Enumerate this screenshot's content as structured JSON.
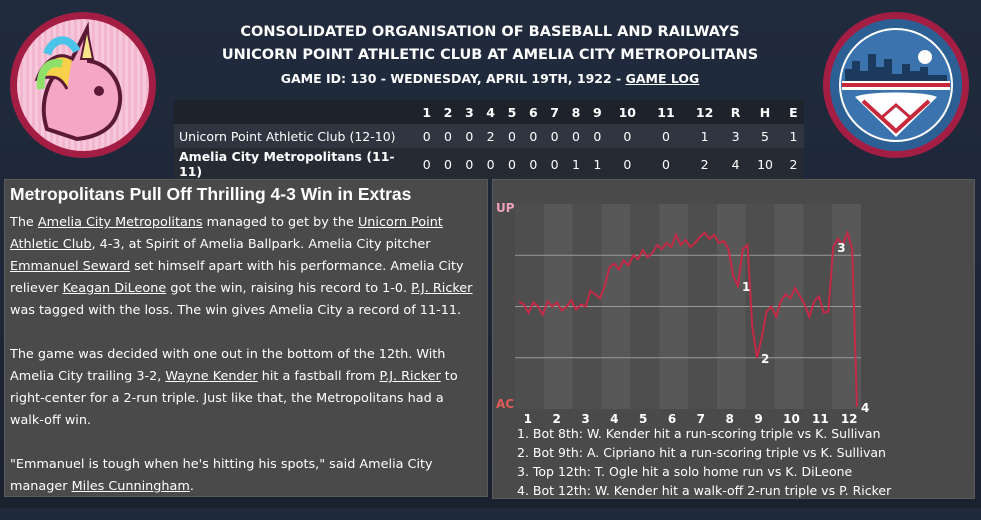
{
  "header": {
    "league": "CONSOLIDATED ORGANISATION OF BASEBALL AND RAILWAYS",
    "matchup": "UNICORN POINT ATHLETIC CLUB AT AMELIA CITY METROPOLITANS",
    "game_info": "GAME ID: 130 - WEDNESDAY, APRIL 19TH, 1922 - ",
    "game_log_link": "GAME LOG"
  },
  "linescore": {
    "innings": [
      "1",
      "2",
      "3",
      "4",
      "5",
      "6",
      "7",
      "8",
      "9",
      "10",
      "11",
      "12"
    ],
    "totals_headers": [
      "R",
      "H",
      "E"
    ],
    "rows": [
      {
        "team": "Unicorn Point Athletic Club (12-10)",
        "innings": [
          "0",
          "0",
          "0",
          "2",
          "0",
          "0",
          "0",
          "0",
          "0",
          "0",
          "0",
          "1"
        ],
        "totals": [
          "3",
          "5",
          "1"
        ]
      },
      {
        "team": "Amelia City Metropolitans (11-11)",
        "innings": [
          "0",
          "0",
          "0",
          "0",
          "0",
          "0",
          "0",
          "1",
          "1",
          "0",
          "0",
          "2"
        ],
        "totals": [
          "4",
          "10",
          "2"
        ]
      }
    ]
  },
  "article": {
    "title": "Metropolitans Pull Off Thrilling 4-3 Win in Extras",
    "p1": [
      {
        "t": "The "
      },
      {
        "t": "Amelia City Metropolitans",
        "link": true
      },
      {
        "t": " managed to get by the "
      },
      {
        "t": "Unicorn Point Athletic Club",
        "link": true
      },
      {
        "t": ", 4-3, at Spirit of Amelia Ballpark. Amelia City pitcher "
      },
      {
        "t": "Emmanuel Seward",
        "link": true
      },
      {
        "t": " set himself apart with his performance. Amelia City reliever "
      },
      {
        "t": "Keagan DiLeone",
        "link": true
      },
      {
        "t": " got the win, raising his record to 1-0. "
      },
      {
        "t": "P.J. Ricker",
        "link": true
      },
      {
        "t": " was tagged with the loss. The win gives Amelia City a record of 11-11."
      }
    ],
    "p2": [
      {
        "t": "The game was decided with one out in the bottom of the 12th. With Amelia City trailing 3-2, "
      },
      {
        "t": "Wayne Kender",
        "link": true
      },
      {
        "t": " hit a fastball from "
      },
      {
        "t": "P.J. Ricker",
        "link": true
      },
      {
        "t": " to right-center for a 2-run triple. Just like that, the Metropolitans had a walk-off win."
      }
    ],
    "p3": [
      {
        "t": "\"Emmanuel is tough when he's hitting his spots,\" said Amelia City manager "
      },
      {
        "t": "Miles Cunningham",
        "link": true
      },
      {
        "t": "."
      }
    ]
  },
  "chart_data": {
    "type": "line",
    "top_label": "UP",
    "bottom_label": "AC",
    "x_tick_labels": [
      "1",
      "2",
      "3",
      "4",
      "5",
      "6",
      "7",
      "8",
      "9",
      "10",
      "11",
      "12"
    ],
    "y_range": [
      -1,
      1
    ],
    "series": [
      {
        "values": [
          0.05,
          0.02,
          -0.06,
          0.04,
          0.0,
          -0.08,
          0.05,
          0.0,
          0.04,
          -0.04,
          0.0,
          0.06,
          -0.03,
          0.02,
          0.0,
          0.15,
          0.12,
          0.08,
          0.2,
          0.38,
          0.42,
          0.36,
          0.45,
          0.4,
          0.5,
          0.46,
          0.55,
          0.48,
          0.52,
          0.6,
          0.56,
          0.62,
          0.58,
          0.7,
          0.6,
          0.65,
          0.58,
          0.62,
          0.68,
          0.72,
          0.66,
          0.7,
          0.62,
          0.64,
          0.56,
          0.3,
          0.2,
          0.56,
          0.6,
          -0.2,
          -0.5,
          -0.3,
          -0.05,
          0.0,
          -0.1,
          0.05,
          0.12,
          0.08,
          0.18,
          0.1,
          0.02,
          -0.1,
          0.05,
          0.1,
          -0.06,
          -0.05,
          0.58,
          0.66,
          0.6,
          0.72,
          0.56,
          -0.98
        ]
      }
    ],
    "annotations": [
      {
        "label": "1",
        "index": 46
      },
      {
        "label": "2",
        "index": 50
      },
      {
        "label": "3",
        "index": 66
      },
      {
        "label": "4",
        "index": 71
      }
    ],
    "legend_entries": [
      "1. Bot 8th: W. Kender hit a run-scoring triple vs K. Sullivan",
      "2. Bot 9th: A. Cipriano hit a run-scoring triple vs K. Sullivan",
      "3. Top 12th: T. Ogle hit a solo home run vs K. DiLeone",
      "4. Bot 12th: W. Kender hit a walk-off 2-run triple vs P. Ricker"
    ]
  },
  "colors": {
    "line": "#c42a46",
    "up_label": "#f0a0b8",
    "ac_label": "#e05a5a"
  }
}
